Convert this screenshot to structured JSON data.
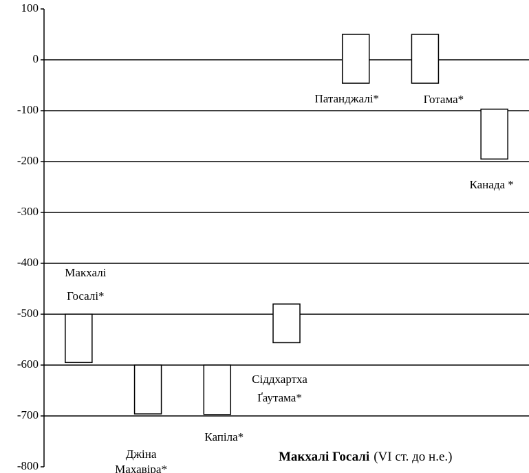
{
  "chart_data": {
    "type": "floating-bar",
    "categories": [
      [
        "Макхалі",
        "Госалі*"
      ],
      [
        "Джіна",
        "Махавіра*"
      ],
      [
        "Капіла*"
      ],
      [
        "Сіддхартха",
        "Ґаутама*"
      ],
      [
        "Патанджалі*"
      ],
      [
        "Готама*"
      ],
      [
        "Канада *"
      ]
    ],
    "start": [
      -500,
      -600,
      -600,
      -480,
      50,
      50,
      -97
    ],
    "end": [
      -595,
      -696,
      -697,
      -556,
      -46,
      -46,
      -195
    ],
    "color": "#ffffff",
    "ylim": [
      -800,
      100
    ],
    "yticks": [
      -800,
      -700,
      -600,
      -500,
      -400,
      -300,
      -200,
      -100,
      0,
      100
    ],
    "grid": true,
    "annotation": {
      "bold": "Макхалі Госалі",
      "text": "(VI ст. до н.е.)"
    }
  }
}
